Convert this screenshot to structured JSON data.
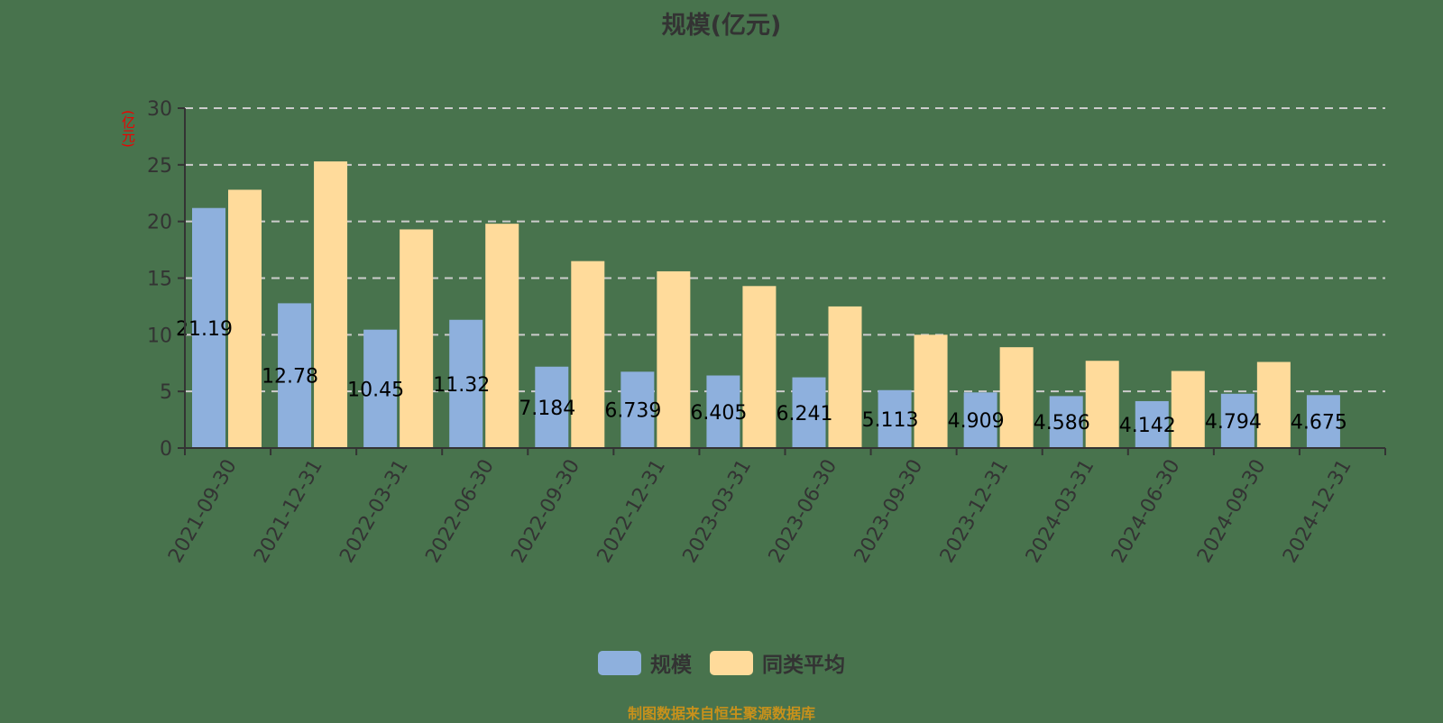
{
  "title": "规模(亿元)",
  "y_axis_unit": "(亿元)",
  "legend": [
    {
      "label": "规模",
      "color": "#8eb0dd"
    },
    {
      "label": "同类平均",
      "color": "#ffdb9b"
    }
  ],
  "source_note": "制图数据来自恒生聚源数据库",
  "colors": {
    "background": "#48734d",
    "scale": "#8eb0dd",
    "peer_avg": "#ffdb9b",
    "axis": "#333333",
    "grid": "#cccccc",
    "unit_label": "#ee0000",
    "source": "#c8911b"
  },
  "chart_data": {
    "type": "bar",
    "title": "规模(亿元)",
    "xlabel": "",
    "ylabel": "(亿元)",
    "ylim": [
      0,
      30
    ],
    "yticks": [
      0,
      5,
      10,
      15,
      20,
      25,
      30
    ],
    "grid": true,
    "legend_position": "bottom",
    "categories": [
      "2021-09-30",
      "2021-12-31",
      "2022-03-31",
      "2022-06-30",
      "2022-09-30",
      "2022-12-31",
      "2023-03-31",
      "2023-06-30",
      "2023-09-30",
      "2023-12-31",
      "2024-03-31",
      "2024-06-30",
      "2024-09-30",
      "2024-12-31"
    ],
    "series": [
      {
        "name": "规模",
        "values": [
          21.19,
          12.78,
          10.45,
          11.32,
          7.184,
          6.739,
          6.405,
          6.241,
          5.113,
          4.909,
          4.586,
          4.142,
          4.794,
          4.675
        ],
        "labels": [
          "21.19",
          "12.78",
          "10.45",
          "11.32",
          "7.184",
          "6.739",
          "6.405",
          "6.241",
          "5.113",
          "4.909",
          "4.586",
          "4.142",
          "4.794",
          "4.675"
        ]
      },
      {
        "name": "同类平均",
        "values": [
          22.8,
          25.3,
          19.3,
          19.8,
          16.5,
          15.6,
          14.3,
          12.5,
          10.0,
          8.9,
          7.7,
          6.8,
          7.6,
          null
        ]
      }
    ]
  }
}
